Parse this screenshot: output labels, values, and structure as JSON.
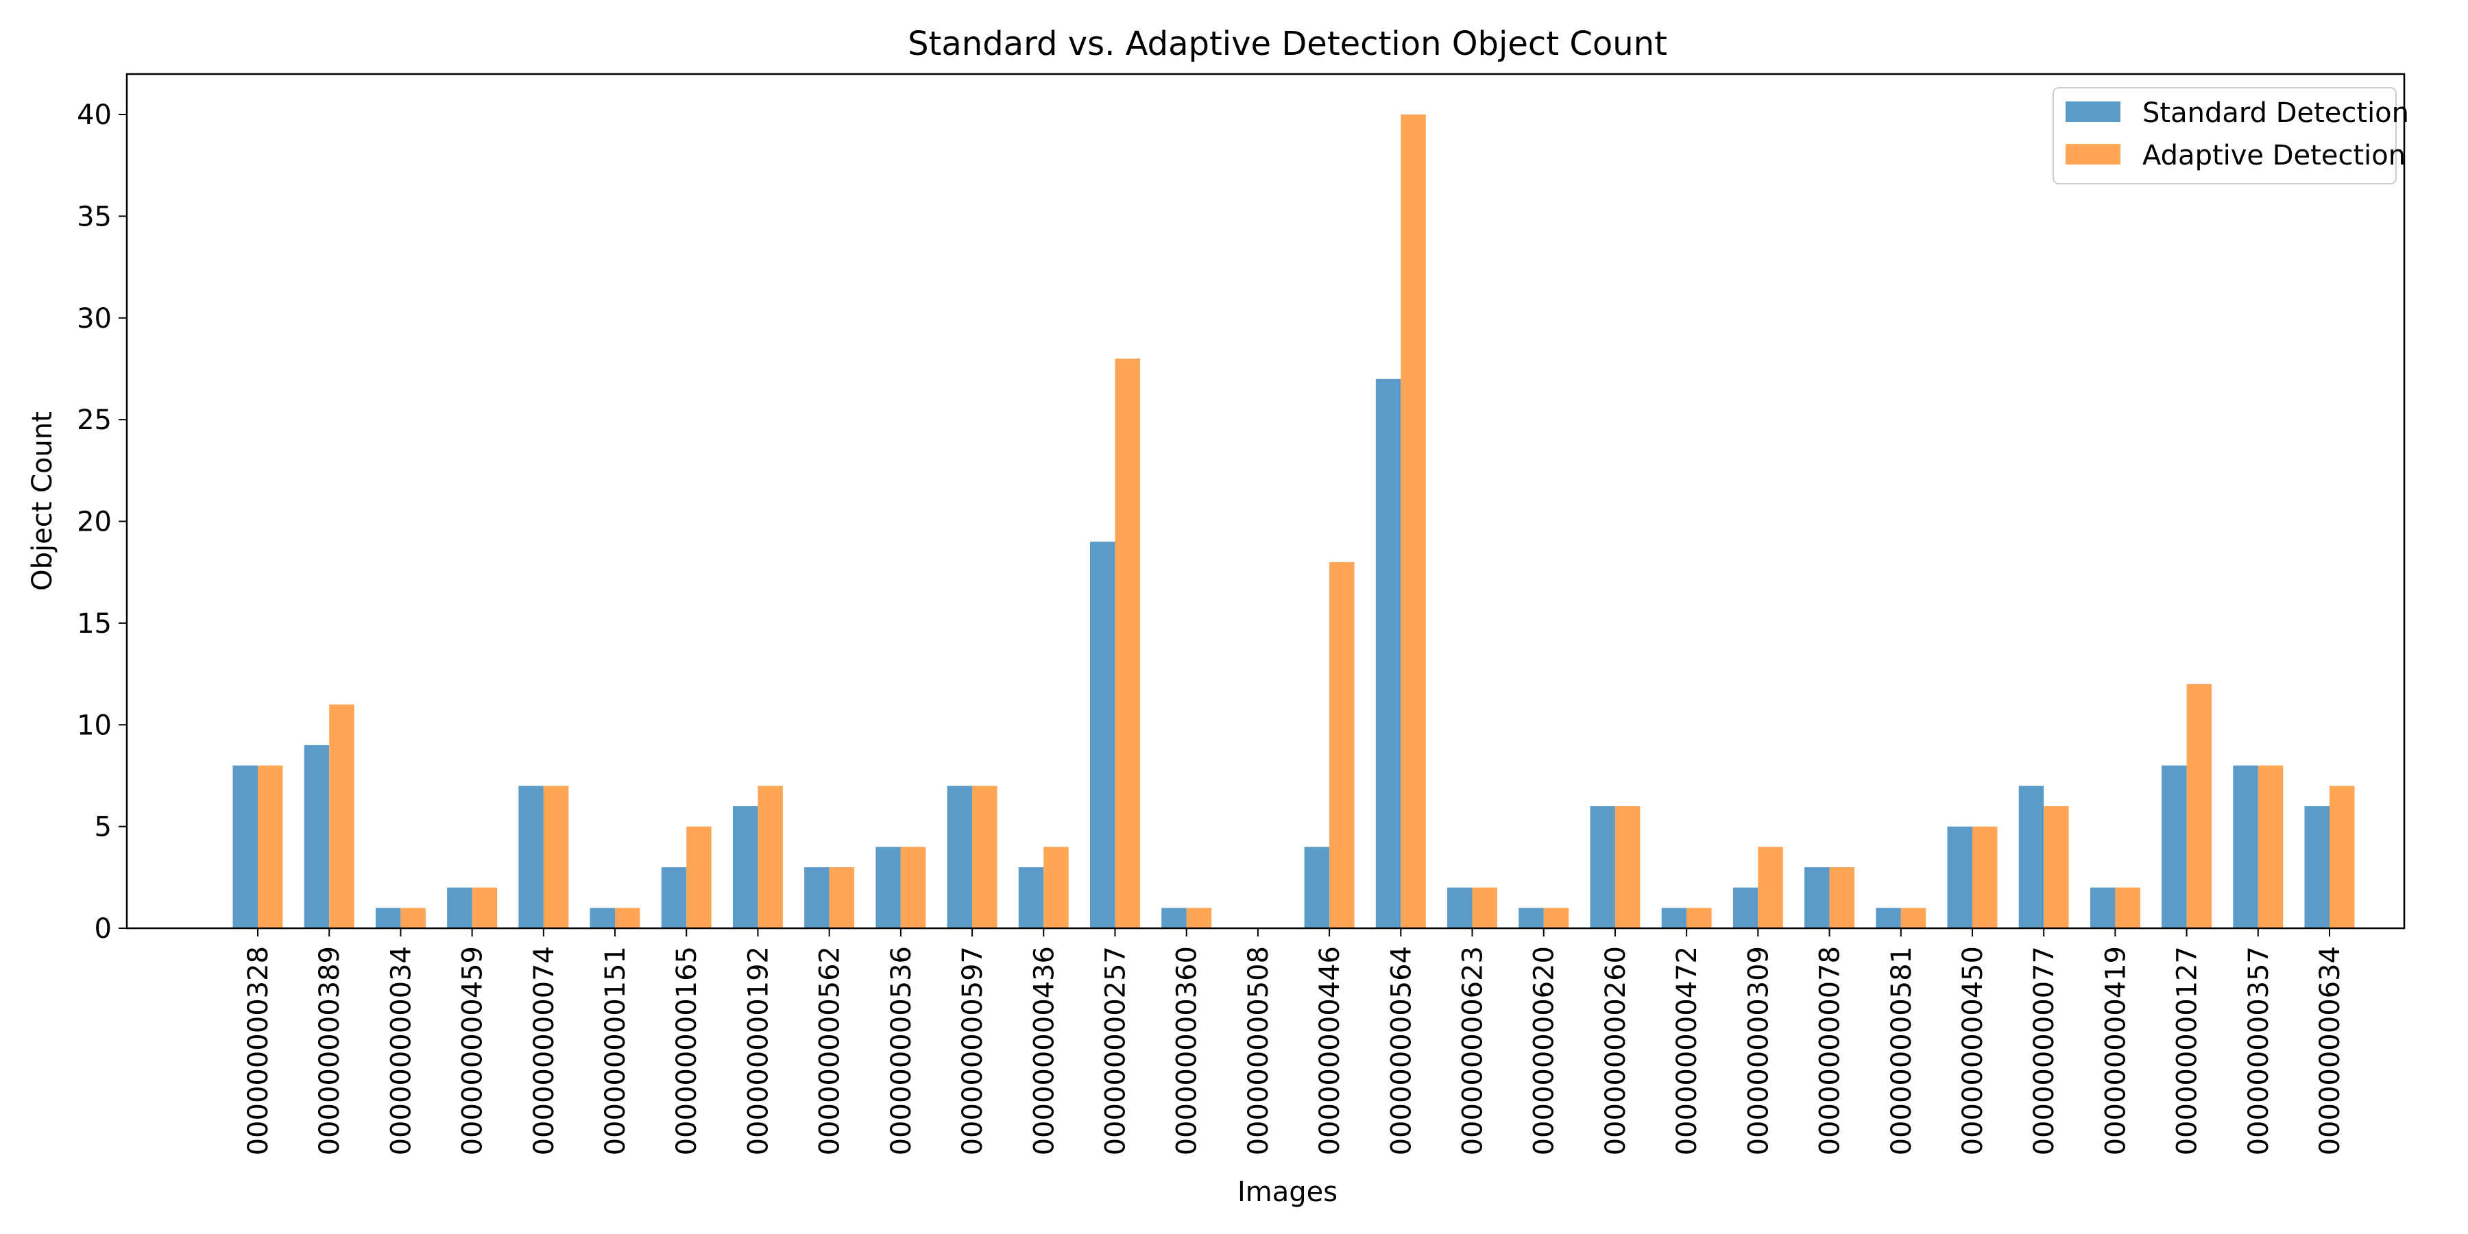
{
  "chart_data": {
    "type": "bar",
    "title": "Standard vs. Adaptive Detection Object Count",
    "xlabel": "Images",
    "ylabel": "Object Count",
    "ylim": [
      0,
      42
    ],
    "yticks": [
      0,
      5,
      10,
      15,
      20,
      25,
      30,
      35,
      40
    ],
    "grid": false,
    "legend_position": "top-right",
    "categories": [
      "000000000328",
      "000000000389",
      "000000000034",
      "000000000459",
      "000000000074",
      "000000000151",
      "000000000165",
      "000000000192",
      "000000000562",
      "000000000536",
      "000000000597",
      "000000000436",
      "000000000257",
      "000000000360",
      "000000000508",
      "000000000446",
      "000000000564",
      "000000000623",
      "000000000620",
      "000000000260",
      "000000000472",
      "000000000309",
      "000000000078",
      "000000000581",
      "000000000450",
      "000000000077",
      "000000000419",
      "000000000127",
      "000000000357",
      "000000000634"
    ],
    "series": [
      {
        "name": "Standard Detection",
        "color": "#5b9bc9",
        "values": [
          8,
          9,
          1,
          2,
          7,
          1,
          3,
          6,
          3,
          4,
          7,
          3,
          19,
          1,
          0,
          4,
          27,
          2,
          1,
          6,
          1,
          2,
          3,
          1,
          5,
          7,
          2,
          8,
          8,
          6
        ]
      },
      {
        "name": "Adaptive Detection",
        "color": "#ffa556",
        "values": [
          8,
          11,
          1,
          2,
          7,
          1,
          5,
          7,
          3,
          4,
          7,
          4,
          28,
          1,
          0,
          18,
          40,
          2,
          1,
          6,
          1,
          4,
          3,
          1,
          5,
          6,
          2,
          12,
          8,
          7
        ]
      }
    ]
  }
}
